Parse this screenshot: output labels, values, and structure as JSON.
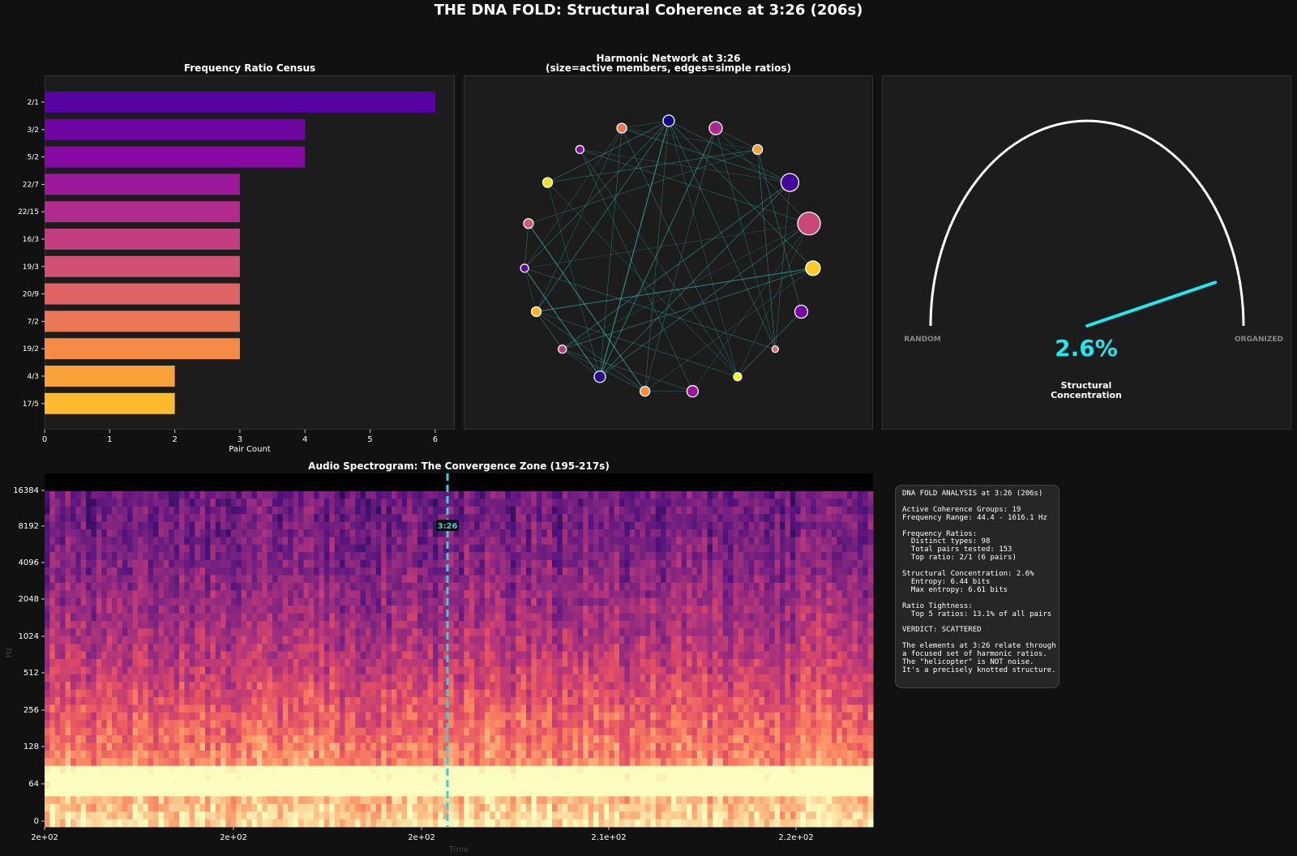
{
  "title": "THE DNA FOLD: Structural Coherence at 3:26 (206s)",
  "chart_data": [
    {
      "type": "bar",
      "orientation": "horizontal",
      "title": "Frequency Ratio Census",
      "xlabel": "Pair Count",
      "ylabel": "",
      "categories": [
        "2/1",
        "3/2",
        "5/2",
        "22/7",
        "22/15",
        "16/3",
        "19/3",
        "20/9",
        "7/2",
        "19/2",
        "4/3",
        "17/5"
      ],
      "values": [
        6,
        4,
        4,
        3,
        3,
        3,
        3,
        3,
        3,
        3,
        2,
        2
      ],
      "xlim": [
        0,
        6.3
      ],
      "xticks": [
        0,
        1,
        2,
        3,
        4,
        5,
        6
      ],
      "colormap": "plasma"
    },
    {
      "type": "network",
      "title": "Harmonic Network at 3:26",
      "subtitle": "(size=active members, edges=simple ratios)",
      "node_count": 19,
      "edge_color": "#3fd6d6"
    },
    {
      "type": "gauge",
      "value": 2.6,
      "value_label": "2.6%",
      "range_labels": [
        "RANDOM",
        "ORGANIZED"
      ],
      "label": "Structural\nConcentration",
      "value_color": "#1fe8ee",
      "arc_color": "#ffffff"
    },
    {
      "type": "heatmap",
      "title": "Audio Spectrogram: The Convergence Zone (195-217s)",
      "xlabel": "Time",
      "ylabel": "Hz",
      "yticks": [
        "0",
        "64",
        "128",
        "256",
        "512",
        "1024",
        "2048",
        "4096",
        "8192",
        "16384"
      ],
      "xticks": [
        "2e+02",
        "2e+02",
        "2e+02",
        "2.1e+02",
        "2.2e+02"
      ],
      "xrange": [
        195,
        217
      ],
      "marker_time": 206,
      "marker_label": "3:26",
      "marker_color": "#3ad0d8",
      "colormap": "magma"
    }
  ],
  "analysis": {
    "text": "DNA FOLD ANALYSIS at 3:26 (206s)\n\nActive Coherence Groups: 19\nFrequency Range: 44.4 - 1616.1 Hz\n\nFrequency Ratios:\n  Distinct types: 98\n  Total pairs tested: 153\n  Top ratio: 2/1 (6 pairs)\n\nStructural Concentration: 2.6%\n  Entropy: 6.44 bits\n  Max entropy: 6.61 bits\n\nRatio Tightness:\n  Top 5 ratios: 13.1% of all pairs\n\nVERDICT: SCATTERED\n\nThe elements at 3:26 relate through\na focused set of harmonic ratios.\nThe \"helicopter\" is NOT noise.\nIt's a precisely knotted structure."
  }
}
